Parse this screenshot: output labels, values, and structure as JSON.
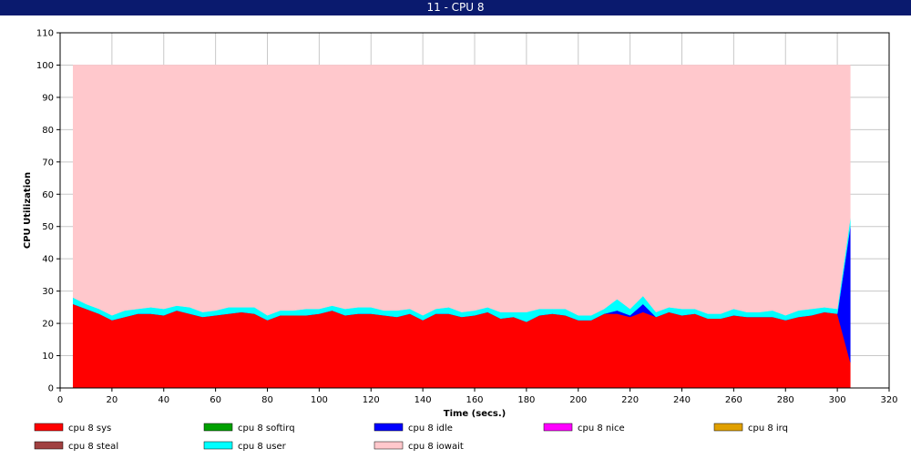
{
  "window": {
    "title": "11 - CPU 8"
  },
  "chart_data": {
    "type": "area",
    "stacked": true,
    "title": "",
    "xlabel": "Time (secs.)",
    "ylabel": "CPU Utilization",
    "xlim": [
      0,
      320
    ],
    "ylim": [
      0,
      110
    ],
    "xticks": [
      0,
      20,
      40,
      60,
      80,
      100,
      120,
      140,
      160,
      180,
      200,
      220,
      240,
      260,
      280,
      300,
      320
    ],
    "yticks": [
      0,
      10,
      20,
      30,
      40,
      50,
      60,
      70,
      80,
      90,
      100,
      110
    ],
    "grid": true,
    "legend_position": "bottom",
    "x": [
      5,
      10,
      15,
      20,
      25,
      30,
      35,
      40,
      45,
      50,
      55,
      60,
      65,
      70,
      75,
      80,
      85,
      90,
      95,
      100,
      105,
      110,
      115,
      120,
      125,
      130,
      135,
      140,
      145,
      150,
      155,
      160,
      165,
      170,
      175,
      180,
      185,
      190,
      195,
      200,
      205,
      210,
      215,
      220,
      225,
      230,
      235,
      240,
      245,
      250,
      255,
      260,
      265,
      270,
      275,
      280,
      285,
      290,
      295,
      300,
      305
    ],
    "series": [
      {
        "name": "cpu 8 sys",
        "color": "#ff0000",
        "values": [
          26,
          24.5,
          23,
          21,
          22,
          23,
          23,
          22.5,
          24,
          23,
          22,
          22.5,
          23,
          23.5,
          23,
          21,
          22.5,
          22.5,
          22.5,
          23,
          24,
          22.5,
          23,
          23,
          22.5,
          22,
          23,
          21,
          23,
          23,
          22,
          22.5,
          23.5,
          21.5,
          22,
          20.5,
          22.5,
          23,
          22.5,
          21,
          21,
          23,
          23,
          22,
          23.5,
          22,
          23.5,
          22.5,
          23,
          21.5,
          21.5,
          22.5,
          22,
          22,
          22,
          21,
          22,
          22.5,
          23.5,
          23,
          8
        ]
      },
      {
        "name": "cpu 8 softirq",
        "color": "#00a000",
        "values": [
          0,
          0,
          0,
          0,
          0,
          0,
          0,
          0,
          0,
          0,
          0,
          0,
          0,
          0,
          0,
          0,
          0,
          0,
          0,
          0,
          0,
          0,
          0,
          0,
          0,
          0,
          0,
          0,
          0,
          0,
          0,
          0,
          0,
          0,
          0,
          0,
          0,
          0,
          0,
          0,
          0,
          0,
          0,
          0,
          0,
          0,
          0,
          0,
          0,
          0,
          0,
          0,
          0,
          0,
          0,
          0,
          0,
          0,
          0,
          0,
          0
        ]
      },
      {
        "name": "cpu 8 idle",
        "color": "#0000ff",
        "values": [
          0,
          0,
          0,
          0,
          0,
          0,
          0,
          0,
          0,
          0,
          0,
          0,
          0,
          0,
          0,
          0,
          0,
          0,
          0,
          0,
          0,
          0,
          0,
          0,
          0,
          0,
          0,
          0,
          0,
          0,
          0,
          0,
          0,
          0,
          0,
          0,
          0,
          0,
          0,
          0,
          0,
          0,
          1,
          0.5,
          2.5,
          0,
          0,
          0,
          0,
          0,
          0,
          0,
          0,
          0,
          0,
          0,
          0,
          0,
          0,
          0,
          42
        ]
      },
      {
        "name": "cpu 8 nice",
        "color": "#ff00ff",
        "values": [
          0,
          0,
          0,
          0,
          0,
          0,
          0,
          0,
          0,
          0,
          0,
          0,
          0,
          0,
          0,
          0,
          0,
          0,
          0,
          0,
          0,
          0,
          0,
          0,
          0,
          0,
          0,
          0,
          0,
          0,
          0,
          0,
          0,
          0,
          0,
          0,
          0,
          0,
          0,
          0,
          0,
          0,
          0,
          0,
          0,
          0,
          0,
          0,
          0,
          0,
          0,
          0,
          0,
          0,
          0,
          0,
          0,
          0,
          0,
          0,
          0
        ]
      },
      {
        "name": "cpu 8 irq",
        "color": "#e0a000",
        "values": [
          0,
          0,
          0,
          0,
          0,
          0,
          0,
          0,
          0,
          0,
          0,
          0,
          0,
          0,
          0,
          0,
          0,
          0,
          0,
          0,
          0,
          0,
          0,
          0,
          0,
          0,
          0,
          0,
          0,
          0,
          0,
          0,
          0,
          0,
          0,
          0,
          0,
          0,
          0,
          0,
          0,
          0,
          0,
          0,
          0,
          0,
          0,
          0,
          0,
          0,
          0,
          0,
          0,
          0,
          0,
          0,
          0,
          0,
          0,
          0,
          0
        ]
      },
      {
        "name": "cpu 8 steal",
        "color": "#a04040",
        "values": [
          0,
          0,
          0,
          0,
          0,
          0,
          0,
          0,
          0,
          0,
          0,
          0,
          0,
          0,
          0,
          0,
          0,
          0,
          0,
          0,
          0,
          0,
          0,
          0,
          0,
          0,
          0,
          0,
          0,
          0,
          0,
          0,
          0,
          0,
          0,
          0,
          0,
          0,
          0,
          0,
          0,
          0,
          0,
          0,
          0,
          0,
          0,
          0,
          0,
          0,
          0,
          0,
          0,
          0,
          0,
          0,
          0,
          0,
          0,
          0,
          0
        ]
      },
      {
        "name": "cpu 8 user",
        "color": "#00ffff",
        "values": [
          2,
          1.5,
          1.5,
          1.5,
          2,
          1.5,
          2,
          2,
          1.5,
          2,
          1.5,
          1.5,
          2,
          1.5,
          2,
          1.5,
          1.5,
          1.5,
          2,
          1.5,
          1.5,
          2,
          2,
          2,
          1.5,
          2,
          1.5,
          1.5,
          1.5,
          2,
          1.5,
          1.5,
          1.5,
          2,
          1.5,
          3,
          2,
          1.5,
          2,
          1.5,
          1.5,
          1.5,
          3.5,
          2,
          2.5,
          1.5,
          1.5,
          2,
          1.5,
          1.5,
          1.5,
          2,
          1.5,
          1.5,
          2,
          1.5,
          2,
          2,
          1.5,
          1.5,
          2.5
        ]
      },
      {
        "name": "cpu 8 iowait",
        "color": "#ffc8cc",
        "values": [
          72,
          74,
          75.5,
          77.5,
          76,
          75.5,
          75,
          75.5,
          74.5,
          75,
          76.5,
          76,
          75,
          75,
          75,
          77.5,
          76,
          76,
          75.5,
          75.5,
          74.5,
          75.5,
          75,
          75,
          76,
          76,
          75.5,
          77.5,
          75.5,
          75,
          76.5,
          76,
          75,
          76.5,
          76.5,
          76.5,
          75.5,
          75.5,
          75.5,
          77.5,
          77.5,
          75.5,
          72.5,
          75.5,
          71.5,
          76.5,
          75,
          75.5,
          75.5,
          77,
          77,
          75.5,
          76.5,
          76.5,
          76,
          77.5,
          76,
          75.5,
          75,
          75.5,
          47.5
        ]
      }
    ]
  }
}
